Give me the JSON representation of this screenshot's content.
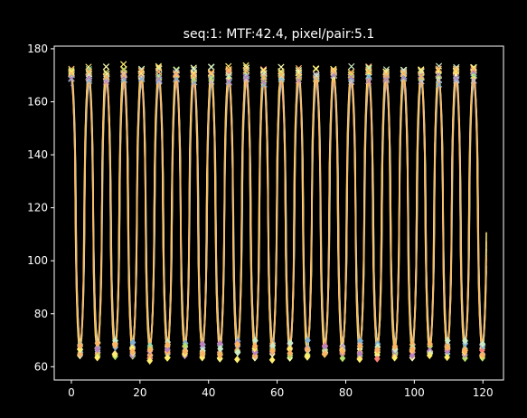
{
  "chart_data": {
    "type": "line",
    "title": "seq:1: MTF:42.4, pixel/pair:5.1",
    "xlabel": "",
    "ylabel": "",
    "xlim": [
      -5,
      126
    ],
    "ylim": [
      55,
      181
    ],
    "xticks": [
      0,
      20,
      40,
      60,
      80,
      100,
      120
    ],
    "yticks": [
      60,
      80,
      100,
      120,
      140,
      160,
      180
    ],
    "grid": false,
    "legend": "none",
    "period_pixels": 5.1,
    "x_start": 0,
    "x_end": 121,
    "series": [
      {
        "color": "#8dd3c7",
        "high": 169,
        "low": 68,
        "phase": 0.0,
        "amp_jitter": 2.0
      },
      {
        "color": "#feffb3",
        "high": 170,
        "low": 67,
        "phase": 0.06,
        "amp_jitter": 2.5
      },
      {
        "color": "#bfbbd9",
        "high": 168,
        "low": 68,
        "phase": -0.05,
        "amp_jitter": 2.0
      },
      {
        "color": "#fa8174",
        "high": 169,
        "low": 67,
        "phase": 0.1,
        "amp_jitter": 2.2
      },
      {
        "color": "#81b1d2",
        "high": 167,
        "low": 69,
        "phase": -0.1,
        "amp_jitter": 1.8
      },
      {
        "color": "#fdb462",
        "high": 170,
        "low": 68,
        "phase": 0.03,
        "amp_jitter": 2.4
      },
      {
        "color": "#b3de69",
        "high": 169,
        "low": 67,
        "phase": -0.02,
        "amp_jitter": 2.1
      },
      {
        "color": "#bc82bd",
        "high": 168,
        "low": 68,
        "phase": 0.08,
        "amp_jitter": 2.3
      },
      {
        "color": "#ccebc4",
        "high": 170,
        "low": 69,
        "phase": -0.07,
        "amp_jitter": 1.9
      },
      {
        "color": "#ffed6f",
        "high": 171,
        "low": 66,
        "phase": 0.12,
        "amp_jitter": 2.6
      },
      {
        "color": "#fdb462",
        "high": 169,
        "low": 68,
        "phase": 0.01,
        "amp_jitter": 1.5
      }
    ]
  }
}
